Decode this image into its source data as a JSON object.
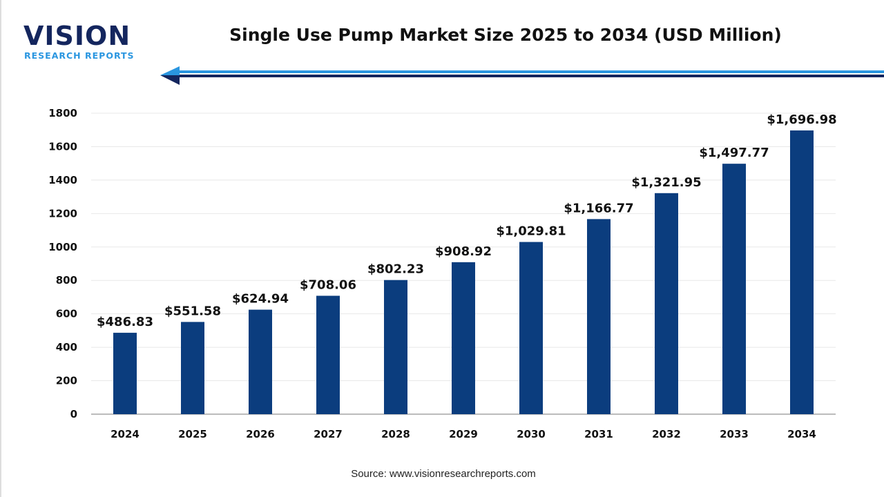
{
  "logo": {
    "main": "VISION",
    "sub": "RESEARCH REPORTS"
  },
  "source": "Source: www.visionresearchreports.com",
  "colors": {
    "bar": "#0b3d7e",
    "arrow_light": "#2a96e0",
    "arrow_dark": "#14265e"
  },
  "chart_data": {
    "type": "bar",
    "title": "Single Use Pump Market Size 2025 to 2034 (USD Million)",
    "xlabel": "",
    "ylabel": "",
    "categories": [
      "2024",
      "2025",
      "2026",
      "2027",
      "2028",
      "2029",
      "2030",
      "2031",
      "2032",
      "2033",
      "2034"
    ],
    "values": [
      486.83,
      551.58,
      624.94,
      708.06,
      802.23,
      908.92,
      1029.81,
      1166.77,
      1321.95,
      1497.77,
      1696.98
    ],
    "data_labels": [
      "$486.83",
      "$551.58",
      "$624.94",
      "$708.06",
      "$802.23",
      "$908.92",
      "$1,029.81",
      "$1,166.77",
      "$1,321.95",
      "$1,497.77",
      "$1,696.98"
    ],
    "ylim": [
      0,
      1800
    ],
    "yticks": [
      "0",
      "200",
      "400",
      "600",
      "800",
      "1000",
      "1200",
      "1400",
      "1600",
      "1800"
    ],
    "grid": true,
    "legend": "none"
  }
}
